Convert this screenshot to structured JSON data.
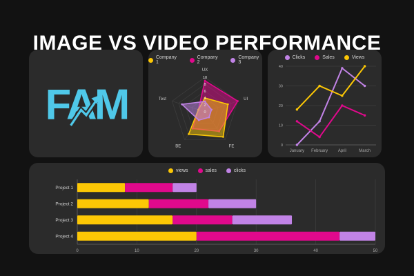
{
  "page": {
    "title": "IMAGE VS VIDEO PERFORMANCE",
    "background": "#121212",
    "card_background": "#2b2b2b"
  },
  "colors": {
    "yellow": "#fcc705",
    "magenta": "#e0098c",
    "purple": "#c183e6",
    "cyan": "#4fc8e9",
    "grid": "#3f3f3f",
    "axis_line": "#5a5a5a",
    "tick_text": "#a8a8a8",
    "label_text": "#d0d0d0"
  },
  "logo": {
    "text": "FAM",
    "color": "#4fc8e9",
    "icon": "up-trend-arrow"
  },
  "chart_data": [
    {
      "id": "radar",
      "type": "radar",
      "axes": [
        "UX",
        "UI",
        "FE",
        "BE",
        "Test"
      ],
      "ticks": [
        0,
        2,
        4,
        6,
        8,
        10
      ],
      "max": 10,
      "legend_position": "top",
      "draw_order": [
        1,
        0,
        2
      ],
      "series": [
        {
          "name": "Company 1",
          "color": "#fcc705",
          "values": [
            4,
            7,
            9,
            8,
            2
          ]
        },
        {
          "name": "Company 2",
          "color": "#e0098c",
          "values": [
            9,
            10,
            7,
            6,
            2
          ]
        },
        {
          "name": "Company 3",
          "color": "#c183e6",
          "values": [
            3,
            2,
            2,
            3,
            7
          ]
        }
      ]
    },
    {
      "id": "line",
      "type": "line",
      "categories": [
        "January",
        "February",
        "April",
        "March"
      ],
      "ylim": [
        0,
        40
      ],
      "yticks": [
        0,
        10,
        20,
        30,
        40
      ],
      "grid": true,
      "legend_position": "top",
      "series": [
        {
          "name": "Clicks",
          "color": "#c183e6",
          "values": [
            0,
            12,
            39,
            30
          ]
        },
        {
          "name": "Sales",
          "color": "#e0098c",
          "values": [
            12,
            4,
            20,
            15
          ]
        },
        {
          "name": "Views",
          "color": "#fcc705",
          "values": [
            18,
            30,
            25,
            40
          ]
        }
      ]
    },
    {
      "id": "bars",
      "type": "bar-horizontal-stacked",
      "categories": [
        "Project 1",
        "Project 2",
        "Project 3",
        "Project 4"
      ],
      "xlim": [
        0,
        50
      ],
      "xticks": [
        0,
        10,
        20,
        30,
        40,
        50
      ],
      "grid": true,
      "legend_position": "top",
      "series": [
        {
          "name": "views",
          "color": "#fcc705",
          "values": [
            8,
            12,
            16,
            20
          ]
        },
        {
          "name": "sales",
          "color": "#e0098c",
          "values": [
            8,
            10,
            10,
            24
          ]
        },
        {
          "name": "clicks",
          "color": "#c183e6",
          "values": [
            4,
            8,
            10,
            6
          ]
        }
      ]
    }
  ]
}
